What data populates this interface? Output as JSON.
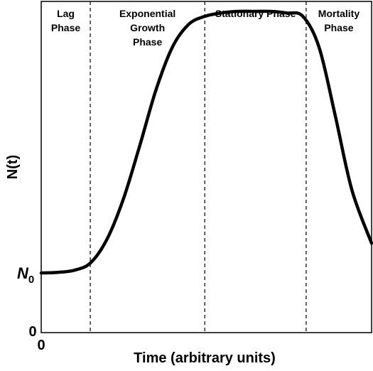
{
  "chart_data": {
    "type": "line",
    "title": "",
    "xlabel": "Time (arbitrary units)",
    "ylabel": "N(t)",
    "x_ticks": [
      "0"
    ],
    "y_ticks": [
      {
        "label": "0"
      },
      {
        "label": "N",
        "subscript": "0"
      }
    ],
    "phases": [
      {
        "name": [
          "Lag",
          "Phase"
        ],
        "x_start": 0.0,
        "x_end": 1.5
      },
      {
        "name": [
          "Exponential",
          "Growth",
          "Phase"
        ],
        "x_start": 1.5,
        "x_end": 5.0
      },
      {
        "name": [
          "Stationary Phase"
        ],
        "x_start": 5.0,
        "x_end": 8.1
      },
      {
        "name": [
          "Mortality",
          "Phase"
        ],
        "x_start": 8.1,
        "x_end": 10.1
      }
    ],
    "phase_boundaries": [
      1.5,
      5.0,
      8.1
    ],
    "xlim": [
      0,
      10.1
    ],
    "ylim": [
      0,
      10
    ],
    "series": [
      {
        "x": [
          0.0,
          0.5,
          1.0,
          1.5,
          2.0,
          2.5,
          3.0,
          3.5,
          4.0,
          4.5,
          5.0,
          5.5,
          6.0,
          6.5,
          7.0,
          7.5,
          8.0,
          8.5,
          9.0,
          9.5,
          10.1
        ],
        "y": [
          1.8,
          1.82,
          1.88,
          2.1,
          2.8,
          4.0,
          5.6,
          7.3,
          8.6,
          9.3,
          9.55,
          9.65,
          9.7,
          9.7,
          9.7,
          9.65,
          9.55,
          8.6,
          6.5,
          4.3,
          2.7
        ]
      }
    ]
  }
}
